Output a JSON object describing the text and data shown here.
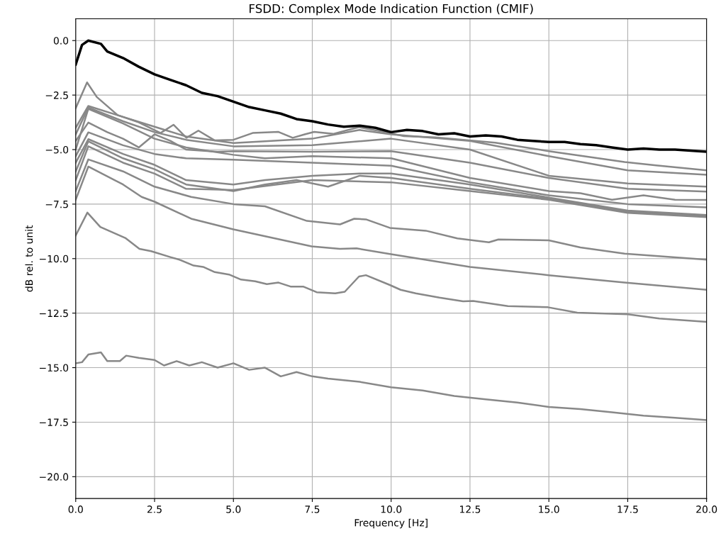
{
  "chart_data": {
    "type": "line",
    "title": "FSDD: Complex Mode Indication Function (CMIF)",
    "xlabel": "Frequency [Hz]",
    "ylabel": "dB rel. to unit",
    "xlim": [
      0,
      20
    ],
    "ylim": [
      -21,
      1
    ],
    "xticks": [
      {
        "value": 0,
        "label": "0.0"
      },
      2.5,
      {
        "value": 5,
        "label": "5.0"
      },
      7.5,
      {
        "value": 10,
        "label": "10.0"
      },
      12.5,
      {
        "value": 15,
        "label": "15.0"
      },
      17.5,
      {
        "value": 20,
        "label": "20.0"
      }
    ],
    "yticks": [
      {
        "value": 0,
        "label": "0.0"
      },
      {
        "value": -2.5,
        "label": "−2.5"
      },
      {
        "value": -5,
        "label": "−5.0"
      },
      {
        "value": -7.5,
        "label": "−7.5"
      },
      {
        "value": -10,
        "label": "−10.0"
      },
      {
        "value": -12.5,
        "label": "−12.5"
      },
      {
        "value": -15,
        "label": "−15.0"
      },
      {
        "value": -17.5,
        "label": "−17.5"
      },
      {
        "value": -20,
        "label": "−20.0"
      }
    ],
    "grid": true,
    "marker": "none",
    "line_style": "solid",
    "series": [
      {
        "color": "#888888",
        "x": [
          0,
          0.36,
          0.67,
          1.33,
          2.0,
          2.69,
          3.1,
          3.51,
          3.89,
          4.41,
          5.0,
          5.61,
          6.43,
          6.88,
          7.26,
          7.56,
          8.16,
          8.98,
          9.96,
          10.4,
          11.4,
          13.3,
          15,
          17.4,
          18.4,
          20
        ],
        "values": [
          -3.1,
          -1.92,
          -2.59,
          -3.42,
          -3.75,
          -4.24,
          -3.86,
          -4.46,
          -4.13,
          -4.58,
          -4.55,
          -4.24,
          -4.19,
          -4.46,
          -4.3,
          -4.19,
          -4.28,
          -3.97,
          -4.24,
          -4.38,
          -4.44,
          -4.68,
          -5.07,
          -5.57,
          -5.72,
          -5.95
        ]
      },
      {
        "color": "#888888",
        "x": [
          0,
          0.4,
          1.5,
          2.5,
          3.5,
          5,
          7.5,
          9,
          10,
          12.5,
          15,
          17.5,
          20
        ],
        "values": [
          -4.0,
          -3.0,
          -3.5,
          -3.95,
          -4.4,
          -4.7,
          -4.5,
          -4.1,
          -4.3,
          -4.6,
          -5.3,
          -5.95,
          -6.15
        ]
      },
      {
        "color": "#888888",
        "x": [
          0,
          0.4,
          1.5,
          2.5,
          3.5,
          5,
          7.5,
          10,
          12.5,
          15,
          17.5,
          20
        ],
        "values": [
          -4.3,
          -3.07,
          -3.7,
          -4.2,
          -4.55,
          -4.85,
          -4.8,
          -4.5,
          -5.0,
          -6.2,
          -6.55,
          -6.7
        ]
      },
      {
        "color": "#888888",
        "x": [
          0,
          0.4,
          1,
          1.5,
          2,
          2.5,
          3,
          3.5,
          4.5,
          5,
          7.5,
          10,
          12.5,
          15,
          17.5,
          20
        ],
        "values": [
          -4.6,
          -3.76,
          -4.2,
          -4.5,
          -4.9,
          -4.3,
          -4.6,
          -5.0,
          -5.1,
          -5.07,
          -5.1,
          -5.07,
          -5.6,
          -6.3,
          -6.8,
          -6.93
        ]
      },
      {
        "color": "#888888",
        "x": [
          0,
          0.4,
          1.5,
          2.5,
          3.5,
          5,
          6,
          7.5,
          10,
          12.5,
          15,
          16,
          17,
          18,
          19,
          20
        ],
        "values": [
          -5.0,
          -3.13,
          -3.8,
          -4.5,
          -4.9,
          -5.24,
          -5.4,
          -5.3,
          -5.4,
          -6.3,
          -6.9,
          -7.0,
          -7.3,
          -7.1,
          -7.3,
          -7.31
        ]
      },
      {
        "color": "#888888",
        "x": [
          0,
          0.4,
          1.5,
          2.5,
          3.5,
          5,
          7.5,
          10,
          12.5,
          15,
          17.5,
          20
        ],
        "values": [
          -5.3,
          -4.21,
          -4.8,
          -5.2,
          -5.4,
          -5.46,
          -5.6,
          -5.74,
          -6.5,
          -7.1,
          -7.5,
          -7.65
        ]
      },
      {
        "color": "#888888",
        "x": [
          0,
          0.4,
          1.5,
          2.5,
          3.5,
          5,
          6,
          7.5,
          9,
          10,
          12.5,
          15,
          17.5,
          20
        ],
        "values": [
          -5.6,
          -4.52,
          -5.2,
          -5.7,
          -6.4,
          -6.6,
          -6.4,
          -6.2,
          -6.1,
          -6.1,
          -6.6,
          -7.2,
          -7.8,
          -8.0
        ]
      },
      {
        "color": "#888888",
        "x": [
          0,
          0.4,
          1.5,
          2.5,
          3.5,
          5,
          6,
          7,
          8,
          9,
          10,
          12.5,
          15,
          17.5,
          20
        ],
        "values": [
          -6.0,
          -4.62,
          -5.4,
          -5.9,
          -6.6,
          -6.9,
          -6.6,
          -6.4,
          -6.7,
          -6.2,
          -6.3,
          -6.8,
          -7.25,
          -7.85,
          -8.05
        ]
      },
      {
        "color": "#888888",
        "x": [
          0,
          0.4,
          1.5,
          2.5,
          3.5,
          5,
          7.5,
          10,
          12.5,
          15,
          17.5,
          20
        ],
        "values": [
          -6.4,
          -4.85,
          -5.6,
          -6.1,
          -6.8,
          -6.85,
          -6.4,
          -6.5,
          -6.9,
          -7.3,
          -7.9,
          -8.1
        ]
      },
      {
        "color": "#888888",
        "x": [
          0,
          0.4,
          1.5,
          2.5,
          3.66,
          5,
          6,
          7.33,
          8.38,
          8.83,
          9.2,
          9.96,
          11.1,
          12.1,
          13.1,
          13.4,
          15,
          16,
          17.4,
          20
        ],
        "values": [
          -6.9,
          -5.45,
          -6.0,
          -6.7,
          -7.17,
          -7.5,
          -7.6,
          -8.27,
          -8.43,
          -8.17,
          -8.2,
          -8.59,
          -8.72,
          -9.07,
          -9.25,
          -9.12,
          -9.16,
          -9.49,
          -9.77,
          -10.05
        ]
      },
      {
        "color": "#888888",
        "x": [
          0,
          0.4,
          1.5,
          2.09,
          2.5,
          3.66,
          5,
          7.48,
          8.38,
          8.9,
          9.96,
          12.5,
          15,
          17.4,
          20
        ],
        "values": [
          -7.3,
          -5.78,
          -6.6,
          -7.17,
          -7.39,
          -8.17,
          -8.66,
          -9.44,
          -9.55,
          -9.53,
          -9.79,
          -10.38,
          -10.76,
          -11.1,
          -11.43
        ]
      },
      {
        "color": "#888888",
        "x": [
          0,
          0.37,
          0.78,
          1.57,
          2.02,
          2.39,
          3.0,
          3.29,
          3.74,
          4.04,
          4.41,
          4.86,
          5.24,
          5.69,
          6.06,
          6.43,
          6.81,
          7.21,
          7.64,
          8.23,
          8.53,
          8.98,
          9.2,
          9.96,
          10.3,
          10.78,
          11.53,
          12.28,
          12.6,
          13.7,
          14.97,
          15.9,
          17.5,
          18.5,
          20
        ],
        "values": [
          -8.94,
          -7.89,
          -8.55,
          -9.05,
          -9.55,
          -9.66,
          -9.93,
          -10.05,
          -10.32,
          -10.38,
          -10.62,
          -10.73,
          -10.96,
          -11.04,
          -11.17,
          -11.1,
          -11.28,
          -11.28,
          -11.54,
          -11.59,
          -11.52,
          -10.82,
          -10.76,
          -11.21,
          -11.43,
          -11.59,
          -11.79,
          -11.96,
          -11.94,
          -12.18,
          -12.23,
          -12.48,
          -12.55,
          -12.75,
          -12.9
        ]
      },
      {
        "color": "#888888",
        "x": [
          0,
          0.2,
          0.4,
          0.8,
          1.0,
          1.4,
          1.6,
          2.0,
          2.5,
          2.8,
          3.2,
          3.6,
          4,
          4.5,
          5,
          5.5,
          6,
          6.5,
          7,
          7.5,
          8,
          9,
          10,
          11,
          12,
          13,
          14,
          15,
          16,
          17,
          18,
          19,
          20
        ],
        "values": [
          -14.8,
          -14.75,
          -14.4,
          -14.3,
          -14.7,
          -14.7,
          -14.45,
          -14.55,
          -14.65,
          -14.9,
          -14.7,
          -14.9,
          -14.75,
          -15.0,
          -14.8,
          -15.1,
          -15.0,
          -15.4,
          -15.2,
          -15.4,
          -15.5,
          -15.65,
          -15.9,
          -16.05,
          -16.3,
          -16.45,
          -16.6,
          -16.8,
          -16.9,
          -17.05,
          -17.2,
          -17.3,
          -17.4
        ]
      },
      {
        "color": "#000000",
        "x": [
          0,
          0.2,
          0.4,
          0.8,
          1.0,
          1.5,
          2,
          2.5,
          3,
          3.5,
          4,
          4.5,
          5,
          5.5,
          6,
          6.5,
          7,
          7.5,
          8,
          8.5,
          9,
          9.5,
          10,
          10.5,
          11,
          11.5,
          12,
          12.5,
          13,
          13.5,
          14,
          14.5,
          15,
          15.5,
          16,
          16.5,
          17,
          17.5,
          18,
          18.5,
          19,
          19.5,
          20
        ],
        "values": [
          -1.1,
          -0.2,
          0.0,
          -0.15,
          -0.5,
          -0.8,
          -1.2,
          -1.55,
          -1.8,
          -2.05,
          -2.4,
          -2.55,
          -2.8,
          -3.05,
          -3.2,
          -3.35,
          -3.6,
          -3.7,
          -3.85,
          -3.95,
          -3.9,
          -4.0,
          -4.2,
          -4.1,
          -4.15,
          -4.3,
          -4.25,
          -4.4,
          -4.35,
          -4.4,
          -4.55,
          -4.6,
          -4.65,
          -4.65,
          -4.75,
          -4.8,
          -4.9,
          -5.0,
          -4.95,
          -5.0,
          -5.0,
          -5.05,
          -5.1
        ]
      }
    ]
  }
}
